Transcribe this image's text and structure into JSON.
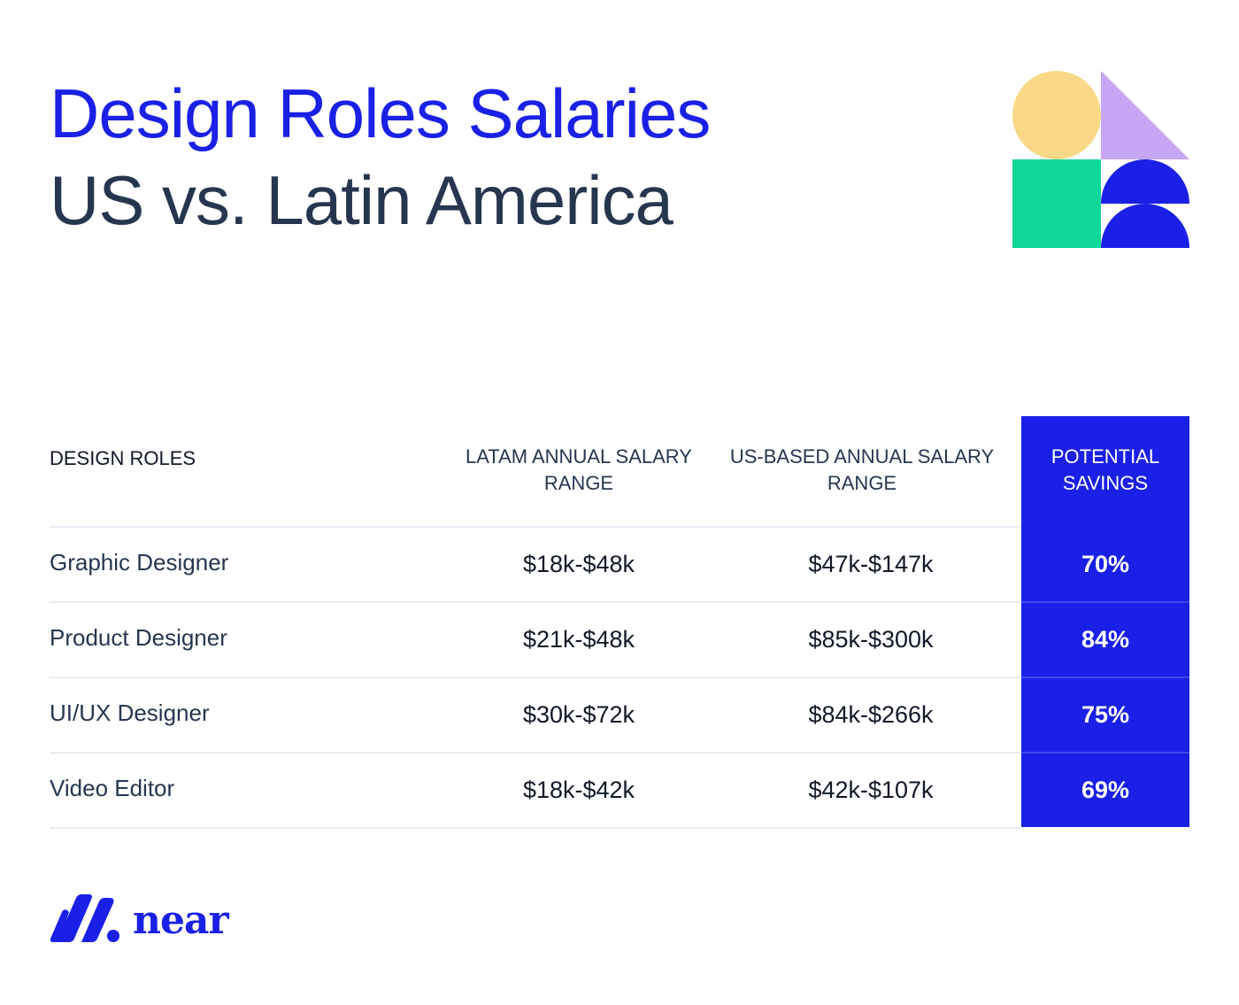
{
  "header": {
    "title_line1": "Design Roles Salaries",
    "title_line2": "US vs. Latin America"
  },
  "colors": {
    "brand_blue": "#1a20e6",
    "title_dark": "#26364f",
    "divider": "#e7ebf3",
    "deco_yellow": "#f9d987",
    "deco_purple": "#c6a6f5",
    "deco_green": "#10d89a",
    "deco_blue": "#1a20e6"
  },
  "decoration": {
    "shapes": [
      "circle-icon",
      "triangle-icon",
      "square-icon",
      "half-circle-icon",
      "half-circle-icon"
    ]
  },
  "chart_data": {
    "type": "table",
    "columns": [
      "DESIGN ROLES",
      "LATAM ANNUAL SALARY RANGE",
      "US-BASED ANNUAL SALARY RANGE",
      "POTENTIAL SAVINGS"
    ],
    "rows": [
      {
        "role": "Graphic Designer",
        "latam": "$18k-$48k",
        "us": "$47k-$147k",
        "savings": "70%"
      },
      {
        "role": "Product Designer",
        "latam": "$21k-$48k",
        "us": "$85k-$300k",
        "savings": "84%"
      },
      {
        "role": "UI/UX Designer",
        "latam": "$30k-$72k",
        "us": "$84k-$266k",
        "savings": "75%"
      },
      {
        "role": "Video Editor",
        "latam": "$18k-$42k",
        "us": "$42k-$107k",
        "savings": "69%"
      }
    ]
  },
  "logo": {
    "icon": "near-logo-icon",
    "text": "near"
  }
}
